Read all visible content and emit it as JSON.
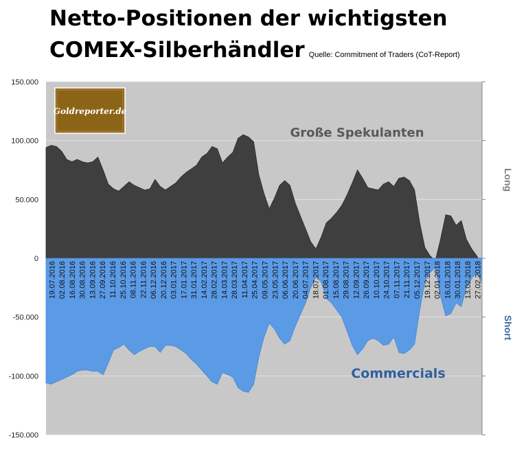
{
  "header": {
    "title_line1": "Netto-Positionen der wichtigsten",
    "title_line2": "COMEX-Silberhändler",
    "source": "Quelle: Commitment of Traders (CoT-Report)"
  },
  "logo": {
    "text": "Goldreporter.de"
  },
  "colors": {
    "plot_background": "#c8c8c8",
    "speculators_fill": "#3f3f3f",
    "commercials_fill": "#5b9be6",
    "speculators_label": "#595959",
    "commercials_label": "#2e5f9e",
    "logo_background": "#8c6418"
  },
  "chart_data": {
    "type": "area",
    "title": "Netto-Positionen der wichtigsten COMEX-Silberhändler",
    "y_axis": {
      "ylim": [
        -150000,
        150000
      ],
      "ticks": [
        150000,
        100000,
        50000,
        0,
        -50000,
        -100000,
        -150000
      ],
      "tick_labels": [
        "150.000",
        "100.000",
        "50.000",
        "0",
        "-50.000",
        "-100.000",
        "-150.000"
      ]
    },
    "right_axis_labels": {
      "upper": "Long",
      "lower": "Short"
    },
    "x_tick_labels": [
      "19.07.2016",
      "02.08.2016",
      "16.08.2016",
      "30.08.2016",
      "13.09.2016",
      "27.09.2016",
      "11.10.2016",
      "25.10.2016",
      "08.11.2016",
      "22.11.2016",
      "06.12.2016",
      "20.12.2016",
      "03.01.2017",
      "17.01.2017",
      "31.01.2017",
      "14.02.2017",
      "28.02.2017",
      "14.03.2017",
      "28.03.2017",
      "11.04.2017",
      "25.04.2017",
      "09.05.2017",
      "23.05.2017",
      "06.06.2017",
      "20.06.2017",
      "04.07.2017",
      "18.07.2017",
      "01.08.2017",
      "15.08.2017",
      "29.08.2017",
      "12.09.2017",
      "26.09.2017",
      "10.10.2017",
      "24.10.2017",
      "07.11.2017",
      "21.11.2017",
      "05.12.2017",
      "19.12.2017",
      "02.01.2018",
      "16.01.2018",
      "30.01.2018",
      "13.02.2018",
      "27.02.2018"
    ],
    "series": [
      {
        "name": "Große Spekulanten",
        "values": [
          94000,
          96000,
          95000,
          91000,
          84000,
          82000,
          84000,
          82000,
          81000,
          82000,
          86000,
          75000,
          63000,
          59000,
          57000,
          61000,
          65000,
          62000,
          60000,
          58000,
          59000,
          67000,
          61000,
          58000,
          61000,
          64000,
          69000,
          73000,
          76000,
          79000,
          86000,
          89000,
          95000,
          93000,
          81000,
          86000,
          90000,
          102000,
          105000,
          103000,
          99000,
          71000,
          55000,
          42000,
          51000,
          62000,
          66000,
          62000,
          47000,
          36000,
          25000,
          14000,
          8000,
          18000,
          30000,
          34000,
          39000,
          45000,
          54000,
          64000,
          75000,
          68000,
          60000,
          59000,
          58000,
          63000,
          65000,
          61000,
          68000,
          69000,
          66000,
          58000,
          30000,
          9000,
          2000,
          -2000,
          16000,
          37000,
          36000,
          28000,
          32000,
          16000,
          8000,
          2000,
          -6000
        ]
      },
      {
        "name": "Commercials",
        "values": [
          -106000,
          -107000,
          -105000,
          -103000,
          -101000,
          -99000,
          -96000,
          -95000,
          -95000,
          -96000,
          -96000,
          -99000,
          -89000,
          -78000,
          -76000,
          -73000,
          -78000,
          -82000,
          -79000,
          -77000,
          -75000,
          -75000,
          -80000,
          -74000,
          -74000,
          -75000,
          -78000,
          -81000,
          -86000,
          -90000,
          -95000,
          -100000,
          -105000,
          -107000,
          -97000,
          -99000,
          -101000,
          -110000,
          -113000,
          -114000,
          -107000,
          -84000,
          -67000,
          -55000,
          -60000,
          -68000,
          -73000,
          -70000,
          -58000,
          -48000,
          -38000,
          -25000,
          -16000,
          -20000,
          -34000,
          -38000,
          -44000,
          -50000,
          -62000,
          -74000,
          -82000,
          -77000,
          -70000,
          -68000,
          -70000,
          -74000,
          -73000,
          -67000,
          -80000,
          -81000,
          -78000,
          -73000,
          -44000,
          -20000,
          -12000,
          -8000,
          -32000,
          -49000,
          -47000,
          -38000,
          -41000,
          -25000,
          -17000,
          -12000,
          -20000
        ]
      }
    ],
    "annotations": [
      "Große Spekulanten",
      "Commercials"
    ],
    "grid": true
  }
}
